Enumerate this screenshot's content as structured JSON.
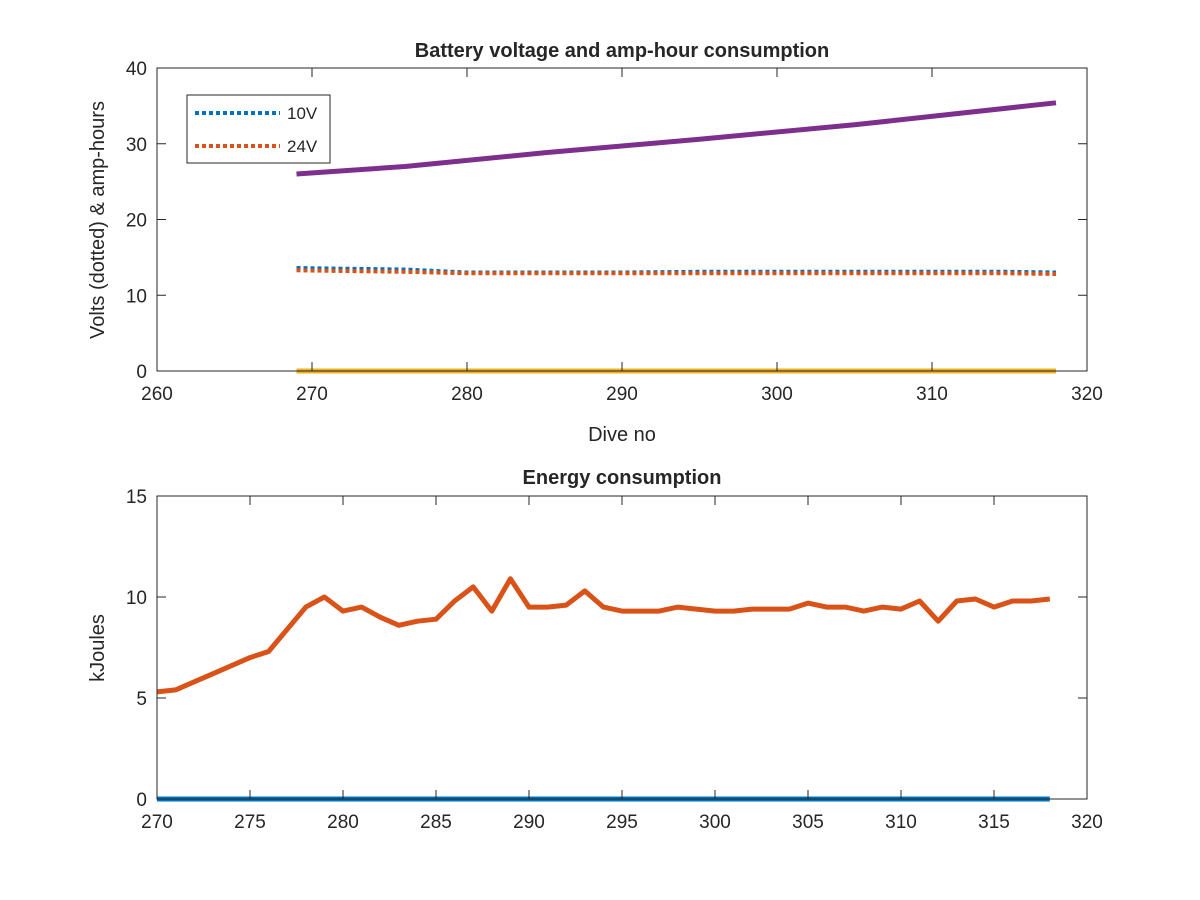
{
  "chart_data": [
    {
      "type": "line",
      "title": "Battery voltage and amp-hour consumption",
      "xlabel": "Dive no",
      "ylabel": "Volts (dotted) & amp-hours",
      "xlim": [
        260,
        320
      ],
      "ylim": [
        0,
        40
      ],
      "xticks": [
        260,
        270,
        280,
        290,
        300,
        310,
        320
      ],
      "yticks": [
        0,
        10,
        20,
        30,
        40
      ],
      "grid": false,
      "legend_position": "top-left",
      "series": [
        {
          "name": "10V",
          "style": "dotted",
          "color": "#0072BD",
          "x": [
            269,
            272,
            276,
            280,
            285,
            290,
            295,
            300,
            305,
            310,
            315,
            318
          ],
          "y": [
            13.6,
            13.5,
            13.4,
            13.0,
            13.0,
            13.0,
            13.1,
            13.1,
            13.1,
            13.1,
            13.1,
            13.0
          ]
        },
        {
          "name": "24V",
          "style": "dotted",
          "color": "#D95319",
          "x": [
            269,
            272,
            276,
            280,
            285,
            290,
            295,
            300,
            305,
            310,
            315,
            318
          ],
          "y": [
            13.3,
            13.2,
            13.1,
            12.9,
            12.9,
            12.9,
            12.9,
            12.9,
            12.9,
            12.9,
            12.9,
            12.8
          ]
        },
        {
          "style": "solid",
          "color": "#EDB120",
          "x": [
            269,
            318
          ],
          "y": [
            0,
            0
          ]
        },
        {
          "style": "solid",
          "color": "#7E2F8E",
          "x": [
            269,
            276,
            285,
            295,
            305,
            318
          ],
          "y": [
            26.0,
            27.0,
            28.8,
            30.6,
            32.5,
            35.4
          ]
        }
      ]
    },
    {
      "type": "line",
      "title": "Energy consumption",
      "xlabel": "",
      "ylabel": "kJoules",
      "xlim": [
        270,
        320
      ],
      "ylim": [
        0,
        15
      ],
      "xticks": [
        270,
        275,
        280,
        285,
        290,
        295,
        300,
        305,
        310,
        315,
        320
      ],
      "yticks": [
        0,
        5,
        10,
        15
      ],
      "grid": false,
      "series": [
        {
          "style": "solid",
          "color": "#0072BD",
          "x": [
            270,
            318
          ],
          "y": [
            0,
            0
          ]
        },
        {
          "style": "solid",
          "color": "#D95319",
          "x": [
            270,
            271,
            272,
            273,
            274,
            275,
            276,
            277,
            278,
            279,
            280,
            281,
            282,
            283,
            284,
            285,
            286,
            287,
            288,
            289,
            290,
            291,
            292,
            293,
            294,
            295,
            296,
            297,
            298,
            299,
            300,
            301,
            302,
            303,
            304,
            305,
            306,
            307,
            308,
            309,
            310,
            311,
            312,
            313,
            314,
            315,
            316,
            317,
            318
          ],
          "y": [
            5.3,
            5.4,
            5.8,
            6.2,
            6.6,
            7.0,
            7.3,
            8.4,
            9.5,
            10.0,
            9.3,
            9.5,
            9.0,
            8.6,
            8.8,
            8.9,
            9.8,
            10.5,
            9.3,
            10.9,
            9.5,
            9.5,
            9.6,
            10.3,
            9.5,
            9.3,
            9.3,
            9.3,
            9.5,
            9.4,
            9.3,
            9.3,
            9.4,
            9.4,
            9.4,
            9.7,
            9.5,
            9.5,
            9.3,
            9.5,
            9.4,
            9.8,
            8.8,
            9.8,
            9.9,
            9.5,
            9.8,
            9.8,
            9.9
          ]
        }
      ]
    }
  ]
}
